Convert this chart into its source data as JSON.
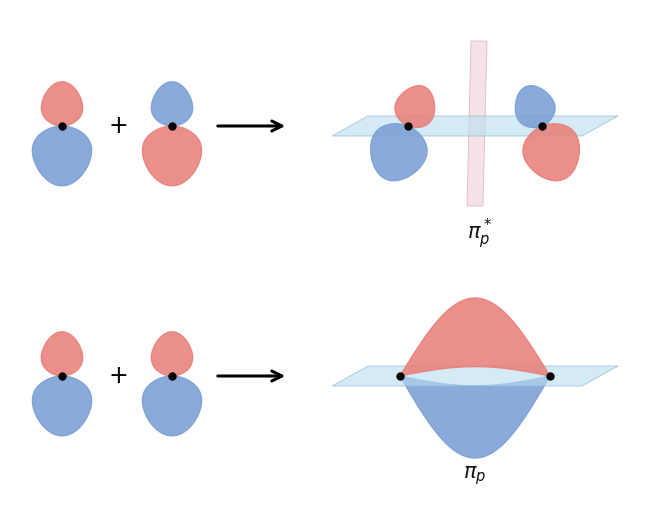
{
  "bg_color": "#ffffff",
  "pink_color": "#e8807a",
  "blue_color": "#7a9fd4",
  "plane_color": "#b8dff0",
  "plane_edge": "#90b8cc",
  "nodal_plane_color": "#f0d8e0",
  "nodal_plane_edge": "#d8b0bc",
  "dot_color": "#000000",
  "dot_size": 5,
  "plus_color": "#000000",
  "label_antibonding": "$\\pi_p^*$",
  "label_bonding": "$\\pi_p$",
  "label_fontsize": 15,
  "figsize": [
    6.5,
    5.11
  ],
  "dpi": 100
}
